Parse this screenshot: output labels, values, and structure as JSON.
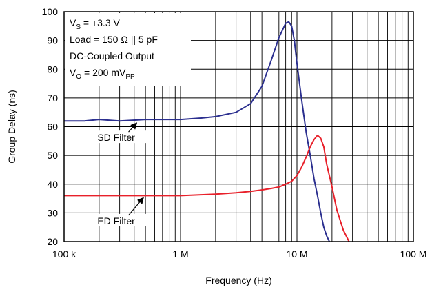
{
  "chart_data": {
    "type": "line",
    "title": "",
    "xlabel": "Frequency (Hz)",
    "ylabel": "Group Delay (ns)",
    "xscale": "log",
    "xlim": [
      100000,
      100000000
    ],
    "ylim": [
      20,
      100
    ],
    "grid": true,
    "x_tick_values": [
      100000,
      1000000,
      10000000,
      100000000
    ],
    "x_tick_labels": [
      "100 k",
      "1 M",
      "10 M",
      "100 M"
    ],
    "y_ticks": [
      20,
      30,
      40,
      50,
      60,
      70,
      80,
      90,
      100
    ],
    "y_tick_labels": [
      "20",
      "30",
      "40",
      "50",
      "60",
      "70",
      "80",
      "90",
      "100"
    ],
    "conditions": [
      {
        "main": "V",
        "sub": "S",
        "rest": " = +3.3 V"
      },
      {
        "main": "Load = 150 Ω || 5 pF",
        "sub": "",
        "rest": ""
      },
      {
        "main": "DC-Coupled Output",
        "sub": "",
        "rest": ""
      },
      {
        "main": "V",
        "sub": "O",
        "rest": " = 200 mV",
        "sub2": "PP"
      }
    ],
    "series": [
      {
        "name": "SD Filter",
        "color": "#2b2f8f",
        "x": [
          100000,
          150000,
          200000,
          300000,
          500000,
          700000,
          1000000,
          1500000,
          2000000,
          3000000,
          4000000,
          5000000,
          6000000,
          7000000,
          8000000,
          8500000,
          9000000,
          9500000,
          10000000,
          11000000,
          12000000,
          13000000,
          14000000,
          15000000,
          16000000,
          17000000,
          18000000,
          19000000
        ],
        "y": [
          62,
          62,
          62.5,
          62,
          62.5,
          62.5,
          62.5,
          63,
          63.5,
          65,
          68,
          74,
          83,
          91,
          96,
          96.5,
          95,
          90,
          82,
          69,
          58,
          50,
          42,
          36,
          30,
          25,
          22,
          20
        ]
      },
      {
        "name": "ED Filter",
        "color": "#e8202a",
        "x": [
          100000,
          200000,
          300000,
          500000,
          700000,
          1000000,
          2000000,
          3000000,
          4000000,
          5000000,
          6000000,
          7000000,
          8000000,
          9000000,
          10000000,
          11000000,
          12000000,
          13000000,
          14000000,
          15000000,
          16000000,
          17000000,
          18000000,
          20000000,
          22000000,
          25000000,
          28000000
        ],
        "y": [
          36,
          36,
          36,
          36,
          36,
          36,
          36.5,
          37,
          37.5,
          38,
          38.5,
          39,
          40,
          41,
          43,
          46,
          49.5,
          53,
          55.5,
          57,
          56,
          53,
          47,
          39,
          31,
          24,
          20
        ]
      }
    ],
    "labels": [
      {
        "text": "SD Filter",
        "at": [
          280000,
          56
        ],
        "arrow_to": [
          420000,
          62
        ]
      },
      {
        "text": "ED Filter",
        "at": [
          280000,
          27
        ],
        "arrow_to": [
          480000,
          36
        ]
      }
    ]
  }
}
